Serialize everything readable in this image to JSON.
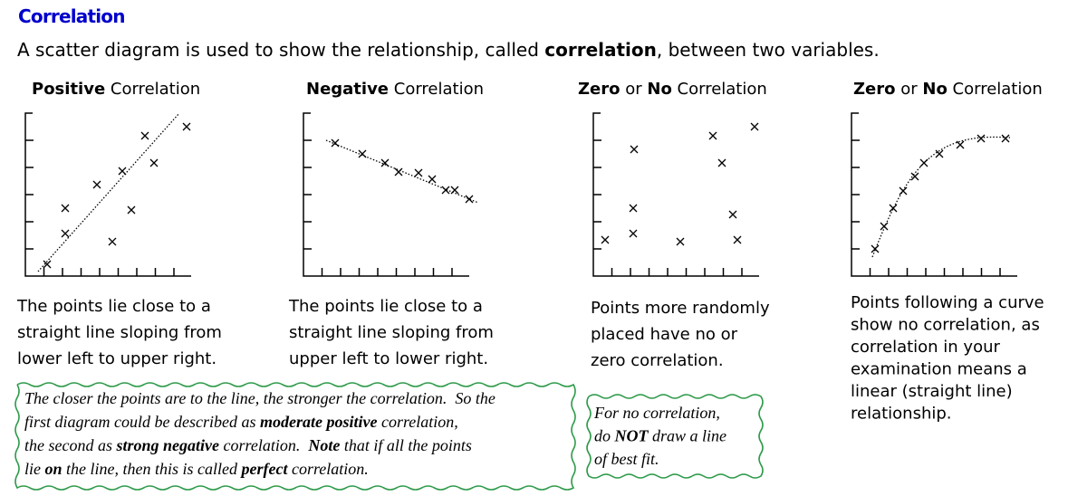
{
  "header": {
    "title": "Correlation",
    "intro": [
      "A scatter diagram is used to show the relationship, called ",
      {
        "bold": "correlation"
      },
      ", between two variables."
    ]
  },
  "panels": [
    {
      "heading": [
        {
          "bold": "Positive"
        },
        " Correlation"
      ],
      "description": [
        "The points lie close to a",
        "straight line sloping from",
        "lower left to upper right."
      ]
    },
    {
      "heading": [
        {
          "bold": "Negative"
        },
        " Correlation"
      ],
      "description": [
        "The points lie close to a",
        "straight line sloping from",
        "upper left to lower right."
      ]
    },
    {
      "heading": [
        {
          "bold": "Zero"
        },
        " or ",
        {
          "bold": "No"
        },
        " Correlation"
      ],
      "description": [
        "Points more randomly",
        "placed have no or",
        "zero correlation."
      ]
    },
    {
      "heading": [
        {
          "bold": "Zero"
        },
        " or ",
        {
          "bold": "No"
        },
        " Correlation"
      ],
      "description": [
        "Points following a curve",
        "show no correlation, as",
        "correlation in your",
        "examination means a",
        "linear (straight line)",
        "relationship."
      ]
    }
  ],
  "notes": {
    "main": [
      [
        "The closer the points are to the line, the stronger the correlation.  So the"
      ],
      [
        "first diagram could be described as ",
        {
          "bold": "moderate positive"
        },
        " correlation,"
      ],
      [
        "the second as ",
        {
          "bold": "strong negative"
        },
        " correlation.  ",
        {
          "bold": "Note"
        },
        " that if all the points"
      ],
      [
        "lie ",
        {
          "bold": "on"
        },
        " the line, then this is called ",
        {
          "bold": "perfect"
        },
        " correlation."
      ]
    ],
    "aside": [
      [
        "For no correlation,"
      ],
      [
        "do ",
        {
          "bold": "NOT"
        },
        " draw a line"
      ],
      [
        "of best fit."
      ]
    ]
  }
}
